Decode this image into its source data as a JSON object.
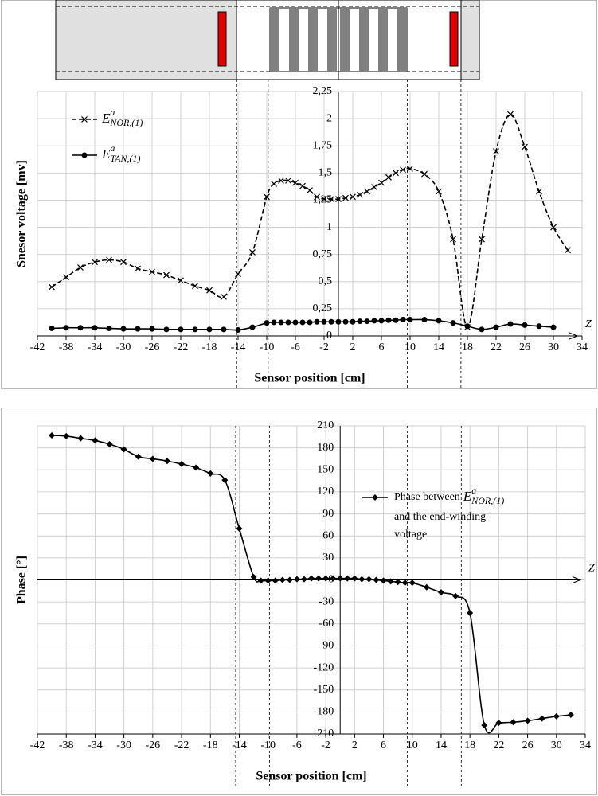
{
  "chart_data": [
    {
      "type": "line",
      "xlabel": "Sensor position [cm]",
      "ylabel": "Snesor voltage [mv]",
      "axis_end_label": "Z",
      "xlim": [
        -42,
        34
      ],
      "xticks": [
        -42,
        -38,
        -34,
        -30,
        -26,
        -22,
        -18,
        -14,
        -10,
        -6,
        -2,
        2,
        6,
        10,
        14,
        18,
        22,
        26,
        30,
        34
      ],
      "ylim": [
        0,
        2.25
      ],
      "yticks": [
        0,
        {
          "value": 0.25,
          "label": "0,25"
        },
        {
          "value": 0.5,
          "label": "0,5"
        },
        {
          "value": 0.75,
          "label": "0,75"
        },
        1,
        {
          "value": 1.25,
          "label": "1,25"
        },
        {
          "value": 1.5,
          "label": "1,5"
        },
        {
          "value": 1.75,
          "label": "1,75"
        },
        2,
        {
          "value": 2.25,
          "label": "2,25"
        }
      ],
      "grid": true,
      "vlines": [
        -14.2,
        -9.8,
        9.6,
        17.1
      ],
      "series": [
        {
          "name": "E",
          "name_sup": "a",
          "name_sub": "NOR,(1)",
          "color": "#000000",
          "dash": true,
          "marker": "x",
          "x": [
            -40,
            -38,
            -36,
            -34,
            -32,
            -30,
            -28,
            -26,
            -24,
            -22,
            -20,
            -18,
            -16,
            -14,
            -12,
            -10,
            -9,
            -8,
            -7,
            -6,
            -5,
            -4,
            -3,
            -2,
            -1,
            0,
            1,
            2,
            3,
            4,
            5,
            6,
            7,
            8,
            9,
            10,
            12,
            14,
            16,
            18,
            20,
            22,
            24,
            26,
            28,
            30,
            32
          ],
          "values": [
            0.45,
            0.54,
            0.63,
            0.68,
            0.7,
            0.68,
            0.62,
            0.59,
            0.56,
            0.51,
            0.46,
            0.42,
            0.36,
            0.57,
            0.77,
            1.28,
            1.4,
            1.43,
            1.43,
            1.41,
            1.38,
            1.34,
            1.28,
            1.26,
            1.26,
            1.26,
            1.27,
            1.28,
            1.3,
            1.33,
            1.37,
            1.41,
            1.46,
            1.5,
            1.53,
            1.54,
            1.49,
            1.33,
            0.89,
            0.08,
            0.89,
            1.7,
            2.04,
            1.74,
            1.33,
            1.0,
            0.79
          ]
        },
        {
          "name": "E",
          "name_sup": "a",
          "name_sub": "TAN,(1)",
          "color": "#000000",
          "dash": false,
          "marker": "circle",
          "x": [
            -40,
            -38,
            -36,
            -34,
            -32,
            -30,
            -28,
            -26,
            -24,
            -22,
            -20,
            -18,
            -16,
            -14,
            -12,
            -10,
            -9,
            -8,
            -7,
            -6,
            -5,
            -4,
            -3,
            -2,
            -1,
            0,
            1,
            2,
            3,
            4,
            5,
            6,
            7,
            8,
            9,
            10,
            12,
            14,
            16,
            18,
            20,
            22,
            24,
            26,
            28,
            30
          ],
          "values": [
            0.07,
            0.075,
            0.075,
            0.075,
            0.07,
            0.065,
            0.065,
            0.065,
            0.06,
            0.06,
            0.06,
            0.06,
            0.06,
            0.055,
            0.08,
            0.12,
            0.125,
            0.125,
            0.125,
            0.125,
            0.125,
            0.125,
            0.13,
            0.13,
            0.13,
            0.13,
            0.13,
            0.13,
            0.135,
            0.135,
            0.14,
            0.14,
            0.145,
            0.145,
            0.15,
            0.15,
            0.15,
            0.14,
            0.12,
            0.09,
            0.06,
            0.08,
            0.11,
            0.1,
            0.09,
            0.08
          ]
        }
      ]
    },
    {
      "type": "line",
      "xlabel": "Sensor position [cm]",
      "ylabel": "Phase [°]",
      "axis_end_label": "Z",
      "xlim": [
        -42,
        34
      ],
      "xticks": [
        -42,
        -38,
        -34,
        -30,
        -26,
        -22,
        -18,
        -14,
        -10,
        -6,
        -2,
        2,
        6,
        10,
        14,
        18,
        22,
        26,
        30,
        34
      ],
      "ylim": [
        -210,
        210
      ],
      "yticks": [
        -210,
        -180,
        -150,
        -120,
        -90,
        -60,
        -30,
        0,
        30,
        60,
        90,
        120,
        150,
        180,
        210
      ],
      "grid": true,
      "vlines": [
        -14.5,
        -9.8,
        9.3,
        16.8
      ],
      "series": [
        {
          "name_prefix": "Phase between",
          "name": "E",
          "name_sup": "a",
          "name_sub": "NOR,(1)",
          "name_suffix": [
            "and the end-winding",
            "voltage"
          ],
          "color": "#000000",
          "dash": false,
          "marker": "diamond",
          "x": [
            -40,
            -38,
            -36,
            -34,
            -32,
            -30,
            -28,
            -26,
            -24,
            -22,
            -20,
            -18,
            -16,
            -14,
            -12,
            -11,
            -10,
            -9,
            -8,
            -7,
            -6,
            -5,
            -4,
            -3,
            -2,
            -1,
            0,
            1,
            2,
            3,
            4,
            5,
            6,
            7,
            8,
            9,
            10,
            12,
            14,
            16,
            18,
            20,
            22,
            24,
            26,
            28,
            30,
            32
          ],
          "values": [
            197,
            196,
            193,
            190,
            185,
            178,
            168,
            165,
            162,
            158,
            153,
            145,
            136,
            70,
            4,
            -1,
            -1,
            -1,
            0,
            0,
            1,
            1,
            2,
            2,
            2,
            2,
            2,
            2,
            2,
            1,
            1,
            0,
            -1,
            -2,
            -3,
            -4,
            -4,
            -10,
            -17,
            -22,
            -45,
            -198,
            -195,
            -194,
            -192,
            -189,
            -186,
            -184
          ]
        }
      ]
    }
  ]
}
